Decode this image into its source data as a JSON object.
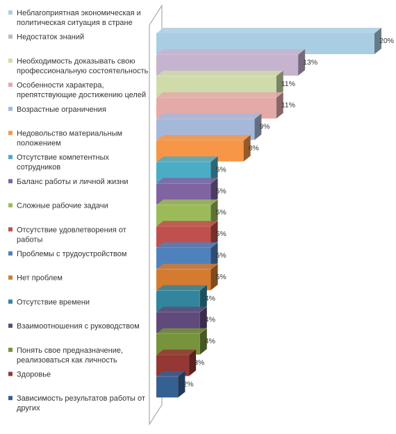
{
  "chart_data": {
    "type": "bar",
    "orientation": "horizontal",
    "style": "3d",
    "legend_position": "left",
    "grid": false,
    "xlim": [
      0,
      20
    ],
    "value_suffix": "%",
    "bars": [
      {
        "label": "Неблагоприятная экономическая и политическая ситуация в стране",
        "value": 20,
        "color": "#a9cde3"
      },
      {
        "label": "Недостаток знаний",
        "value": 13,
        "color": "#c5b3cf"
      },
      {
        "label": "Необходимость доказывать свою профессиональную состоятельность",
        "value": 11,
        "color": "#cfdcaa"
      },
      {
        "label": "Особенности характера, препятствующие достижению целей",
        "value": 11,
        "color": "#e3aaa8"
      },
      {
        "label": "Возрастные ограничения",
        "value": 9,
        "color": "#a6b8da"
      },
      {
        "label": "Недовольство материальным положением",
        "value": 8,
        "color": "#f79646"
      },
      {
        "label": "Отсутствие компетентных сотрудников",
        "value": 5,
        "color": "#4bacc6"
      },
      {
        "label": "Баланс работы и личной жизни",
        "value": 5,
        "color": "#8064a2"
      },
      {
        "label": "Сложные рабочие задачи",
        "value": 5,
        "color": "#9bbb59"
      },
      {
        "label": "Отсутствие удовлетворения от работы",
        "value": 5,
        "color": "#c0504d"
      },
      {
        "label": "Проблемы с трудоустройством",
        "value": 5,
        "color": "#4f81bd"
      },
      {
        "label": "Нет проблем",
        "value": 5,
        "color": "#d47b2f"
      },
      {
        "label": "Отсутствие времени",
        "value": 4,
        "color": "#31859c"
      },
      {
        "label": "Взаимоотношения с руководством",
        "value": 4,
        "color": "#604a7b"
      },
      {
        "label": "Понять свое предназначение, реализоваться как личность",
        "value": 4,
        "color": "#77933c"
      },
      {
        "label": "Здоровье",
        "value": 3,
        "color": "#953735"
      },
      {
        "label": "Зависимость результатов работы от других",
        "value": 2,
        "color": "#366092"
      }
    ]
  }
}
